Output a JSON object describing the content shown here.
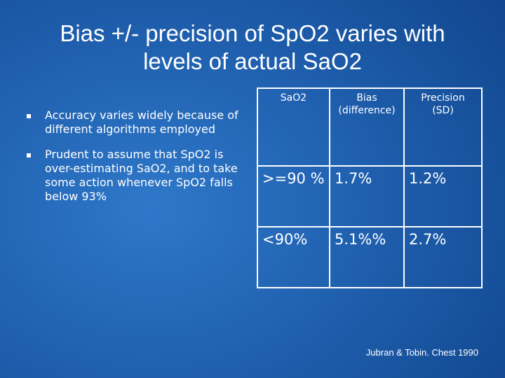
{
  "slide": {
    "title": "Bias +/- precision of SpO2 varies with levels of actual SaO2",
    "bullets": [
      "Accuracy varies widely because of different algorithms employed",
      "Prudent to assume that SpO2 is over-estimating SaO2, and to take some action whenever SpO2 falls below 93%"
    ],
    "table": {
      "headers": [
        "SaO2",
        "Bias (difference)",
        "Precision (SD)"
      ],
      "rows": [
        [
          ">=90 %",
          "1.7%",
          "1.2%"
        ],
        [
          "<90%",
          "5.1%%",
          "2.7%"
        ]
      ]
    },
    "citation": "Jubran & Tobin. Chest 1990"
  }
}
